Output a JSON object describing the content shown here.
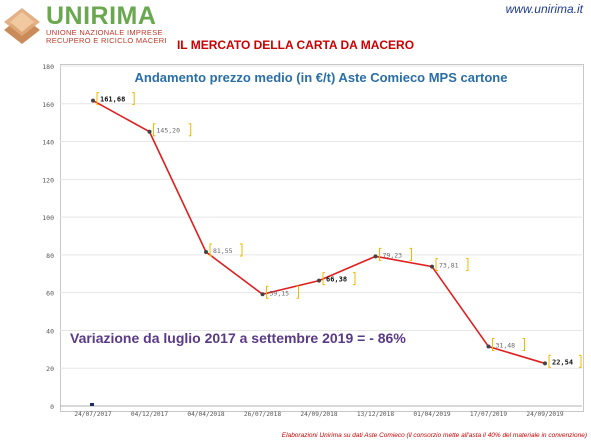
{
  "header": {
    "brand": "UNIRIMA",
    "brand_sub1": "UNIONE NAZIONALE IMPRESE",
    "brand_sub2": "RECUPERO E RICICLO MACERI",
    "website": "www.unirima.it",
    "page_title": "IL MERCATO DELLA CARTA DA MACERO"
  },
  "footer": {
    "note": "Elaborazioni Unirima su dati Aste Comieco (il consorzio mette all'asta il 40% del materiale in convenzione)"
  },
  "annotation": "Variazione da luglio 2017 a settembre 2019 = - 86%",
  "colors": {
    "line": "#e02020",
    "label_bracket": "#f2b800",
    "brand_green": "#6aa84f",
    "title_blue": "#2a6ea6"
  },
  "chart_data": {
    "type": "line",
    "title": "Andamento prezzo medio (in €/t) Aste Comieco MPS cartone",
    "xlabel": "",
    "ylabel": "",
    "categories": [
      "24/07/2017",
      "04/12/2017",
      "04/04/2018",
      "26/07/2018",
      "24/09/2018",
      "13/12/2018",
      "01/04/2019",
      "17/07/2019",
      "24/09/2019"
    ],
    "series": [
      {
        "name": "",
        "values": [
          161.68,
          145.2,
          81.55,
          59.15,
          66.38,
          79.23,
          73.81,
          31.48,
          22.54
        ],
        "labels": [
          "161,68",
          "145,20",
          "81,55",
          "59,15",
          "66,38",
          "79,23",
          "73,81",
          "31,48",
          "22,54"
        ]
      }
    ],
    "ylim": [
      0,
      180
    ],
    "yticks": [
      0,
      20,
      40,
      60,
      80,
      100,
      120,
      140,
      160,
      180
    ],
    "grid": true
  }
}
